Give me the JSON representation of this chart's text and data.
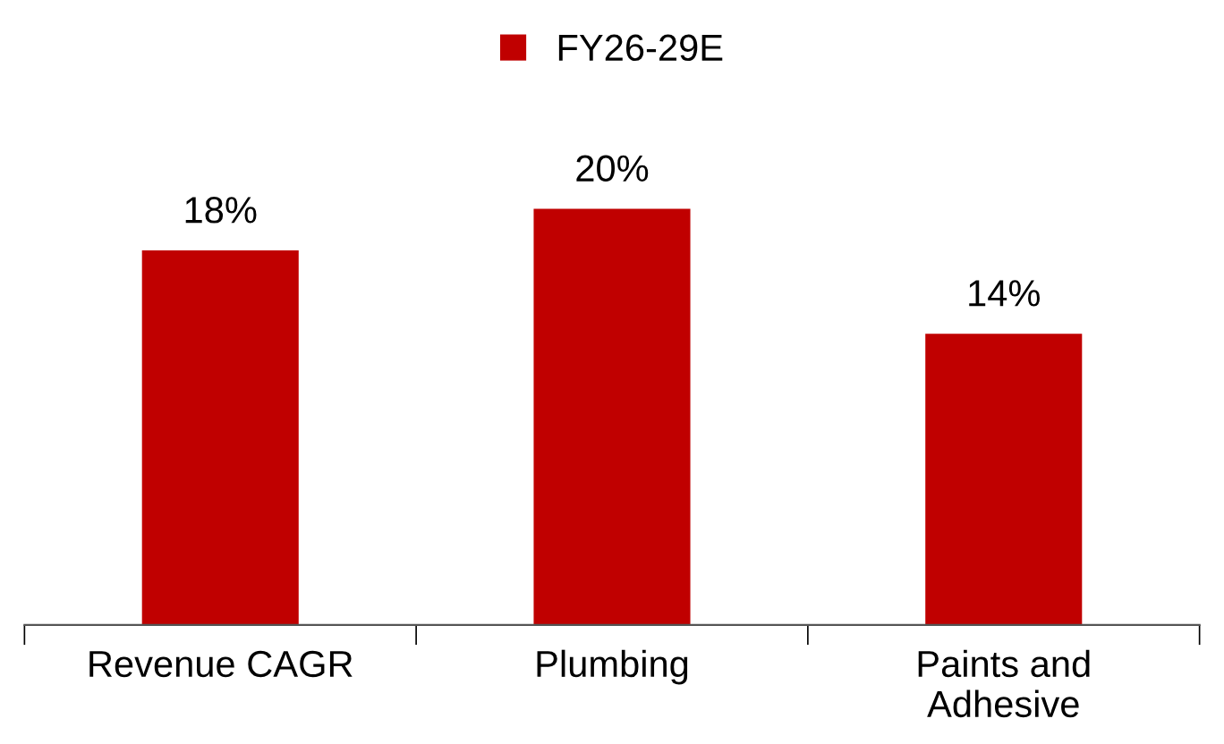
{
  "chart_data": {
    "type": "bar",
    "categories": [
      "Revenue CAGR",
      "Plumbing",
      "Paints and Adhesive"
    ],
    "series": [
      {
        "name": "FY26-29E",
        "color": "#c00000",
        "values": [
          18,
          20,
          14
        ],
        "value_labels": [
          "18%",
          "20%",
          "14%"
        ]
      }
    ],
    "legend": "top",
    "grid": false
  }
}
